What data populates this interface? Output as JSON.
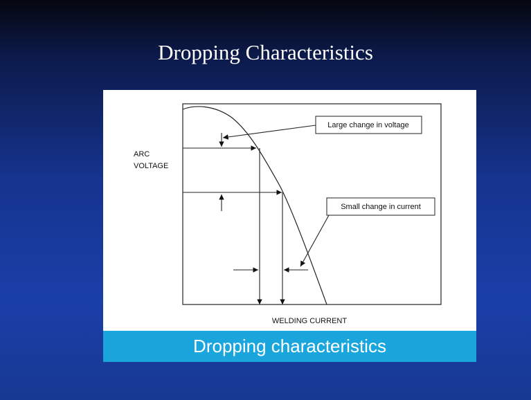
{
  "title": "Dropping Characteristics",
  "diagram": {
    "y_label_lines": [
      "ARC",
      "VOLTAGE"
    ],
    "x_label": "WELDING CURRENT",
    "callouts": [
      "Large change in voltage",
      "Small change in current"
    ]
  },
  "caption": "Dropping characteristics"
}
